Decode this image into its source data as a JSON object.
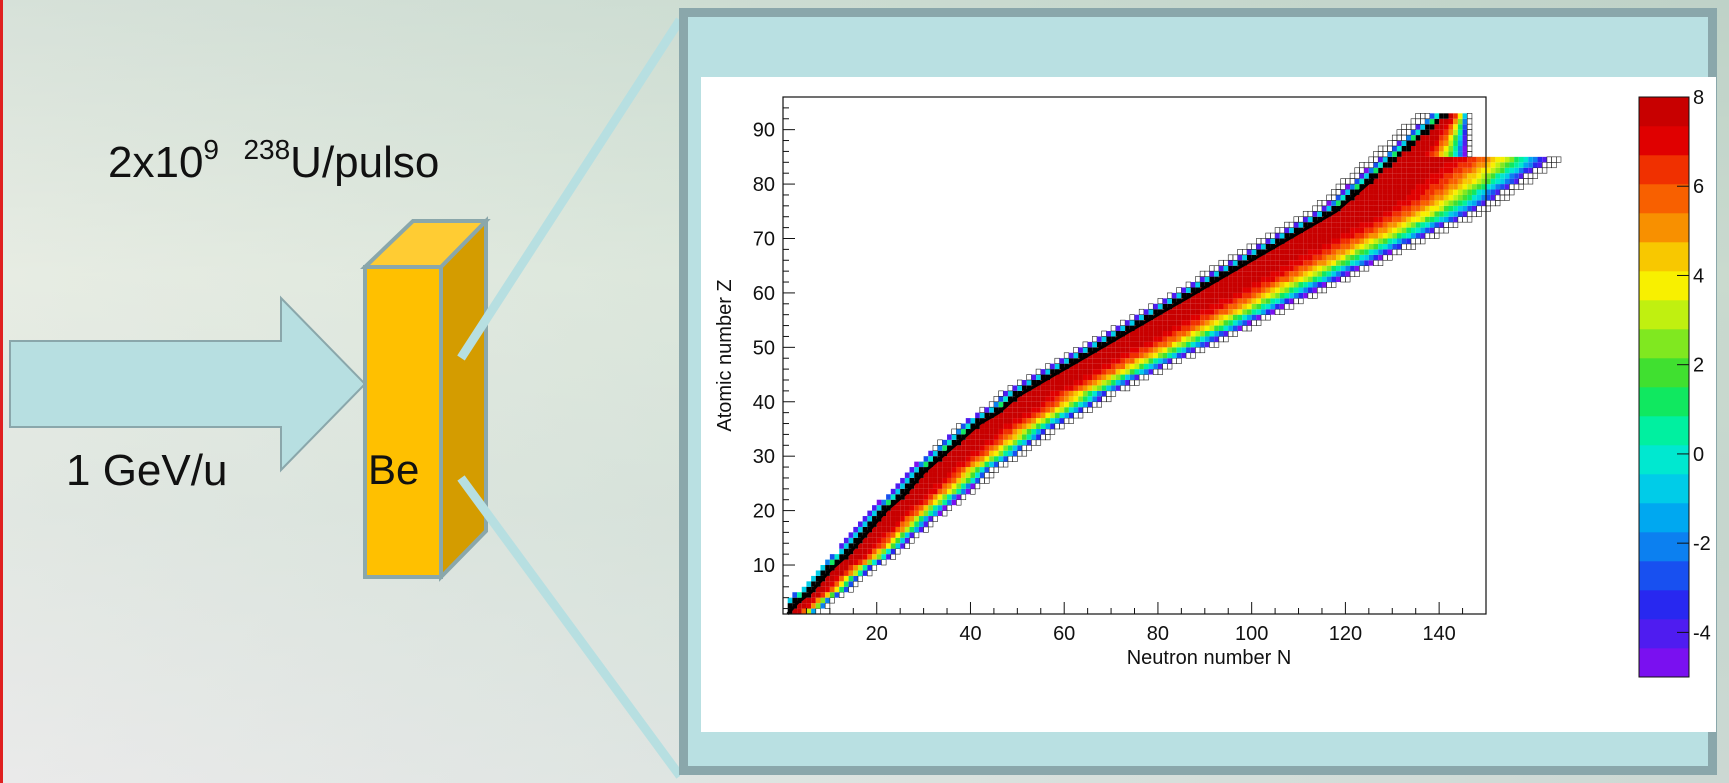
{
  "slide": {
    "intensity_main": "2x10",
    "intensity_exp": "9",
    "intensity_iso_mass": "238",
    "intensity_rest": "U/pulso",
    "energy": "1 GeV/u",
    "target": "Be"
  },
  "colors": {
    "arrow": "#b7dfe1",
    "arrow_border": "#8aa7ab",
    "target_front": "#ffc000",
    "target_side": "#d49c00",
    "target_top": "#ffcc33",
    "frame": "#b9e0e2",
    "frame_border": "#8aa7ab"
  },
  "chart_data": {
    "type": "heatmap",
    "xlabel": "Neutron number N",
    "ylabel": "Atomic number Z",
    "xlim": [
      0,
      150
    ],
    "ylim": [
      1,
      96
    ],
    "xticks": [
      20,
      40,
      60,
      80,
      100,
      120,
      140
    ],
    "xtick_labels": [
      "20",
      "40",
      "60",
      "80",
      "100",
      "120",
      "140"
    ],
    "yticks": [
      10,
      20,
      30,
      40,
      50,
      60,
      70,
      80,
      90
    ],
    "ytick_labels": [
      "10",
      "20",
      "30",
      "40",
      "50",
      "60",
      "70",
      "80",
      "90"
    ],
    "colorbar": {
      "min": -5,
      "max": 8,
      "ticks": [
        8,
        6,
        4,
        2,
        0,
        -2,
        -4
      ],
      "tick_labels": [
        "8",
        "6",
        "4",
        "2",
        "0",
        "-2",
        "-4"
      ],
      "colors": [
        "#7a10f0",
        "#4f1cf0",
        "#2828f0",
        "#1850f0",
        "#0c80f0",
        "#00a8f0",
        "#00cce8",
        "#00e8d0",
        "#00f0a0",
        "#10e860",
        "#40e030",
        "#80e820",
        "#c0f010",
        "#f8f000",
        "#f8c800",
        "#f89000",
        "#f86000",
        "#f03000",
        "#e00000",
        "#c80000"
      ]
    },
    "stable_line": [
      [
        1,
        1
      ],
      [
        3,
        3
      ],
      [
        6,
        5
      ],
      [
        10,
        9
      ],
      [
        14,
        12
      ],
      [
        18,
        16
      ],
      [
        22,
        20
      ],
      [
        26,
        23
      ],
      [
        30,
        27
      ],
      [
        34,
        30
      ],
      [
        38,
        33
      ],
      [
        42,
        36
      ],
      [
        46,
        38
      ],
      [
        50,
        41
      ],
      [
        54,
        43
      ],
      [
        58,
        45
      ],
      [
        62,
        47
      ],
      [
        66,
        49
      ],
      [
        70,
        51
      ],
      [
        74,
        53
      ],
      [
        78,
        55
      ],
      [
        82,
        57
      ],
      [
        86,
        59
      ],
      [
        90,
        61
      ],
      [
        94,
        63
      ],
      [
        98,
        65
      ],
      [
        102,
        67
      ],
      [
        106,
        69
      ],
      [
        110,
        71
      ],
      [
        114,
        73
      ],
      [
        118,
        75
      ],
      [
        122,
        78
      ],
      [
        126,
        81
      ]
    ],
    "regions": [
      {
        "name": "cross-section-map",
        "value_range": [
          -5,
          8
        ],
        "z_range": [
          1,
          92
        ],
        "n_range": [
          1,
          146
        ]
      }
    ]
  }
}
